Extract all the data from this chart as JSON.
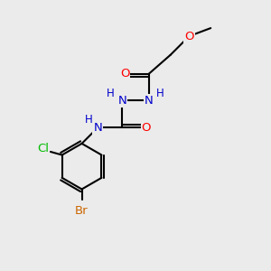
{
  "bg_color": "#ebebeb",
  "bond_color": "#000000",
  "atom_colors": {
    "O": "#ff0000",
    "N": "#0000cc",
    "Cl": "#00bb00",
    "Br": "#cc6600",
    "C": "#000000",
    "H": "#000000"
  },
  "figsize": [
    3.0,
    3.0
  ],
  "dpi": 100
}
